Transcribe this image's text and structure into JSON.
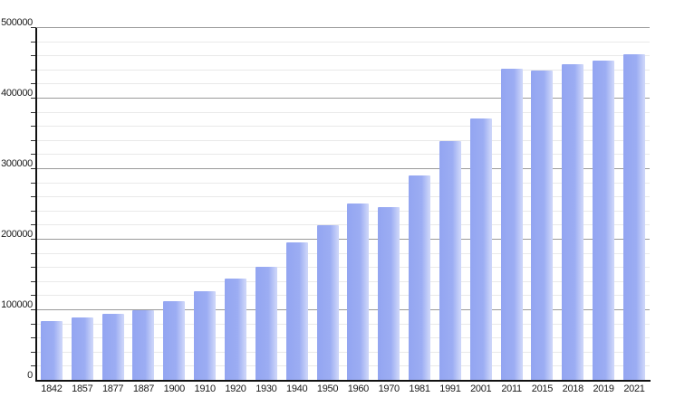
{
  "chart_data": {
    "type": "bar",
    "title": "",
    "xlabel": "",
    "ylabel": "",
    "categories": [
      "1842",
      "1857",
      "1877",
      "1887",
      "1900",
      "1910",
      "1920",
      "1930",
      "1940",
      "1950",
      "1960",
      "1970",
      "1981",
      "1991",
      "2001",
      "2011",
      "2015",
      "2018",
      "2019",
      "2021"
    ],
    "values": [
      83000,
      89000,
      93000,
      99000,
      112000,
      126000,
      143000,
      160000,
      195000,
      219000,
      250000,
      245000,
      290000,
      339000,
      370000,
      441000,
      439000,
      447000,
      453000,
      461000
    ],
    "ylim": [
      0,
      500000
    ],
    "y_major_step": 100000,
    "y_minor_step": 20000,
    "y_tick_labels": [
      "0",
      "100000",
      "200000",
      "300000",
      "400000",
      "500000"
    ],
    "grid": "on",
    "legend_position": "none",
    "colors": {
      "bar_main": "#93a5f1",
      "bar_mid": "#9cadf3",
      "bar_edge_light": "#ccd5f9",
      "axis": "#111111",
      "major_grid": "#9a9a9a",
      "minor_grid": "#e9e9e9",
      "tick": "#333333",
      "label_text": "#1a1a1a",
      "background": "#ffffff"
    }
  }
}
